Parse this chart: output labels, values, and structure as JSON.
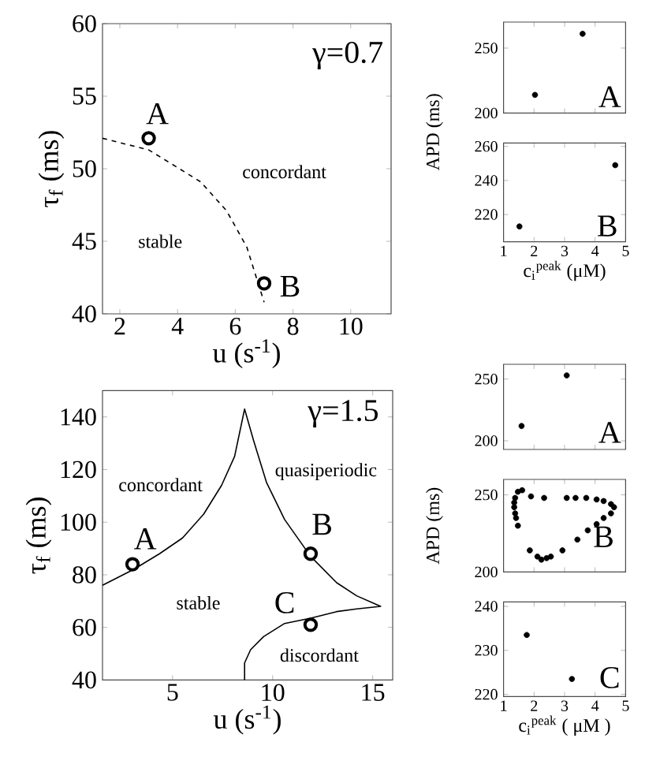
{
  "chart_data": [
    {
      "type": "line",
      "xlabel": "u  (s$^{-1}$)",
      "ylabel": "τ$_{f}$ (ms)",
      "xlim": [
        1.4,
        11.4
      ],
      "ylim": [
        40,
        60
      ],
      "xticks": [
        2,
        4,
        6,
        8,
        10
      ],
      "yticks": [
        40,
        45,
        50,
        55,
        60
      ],
      "series": [
        {
          "type": "line",
          "line_style": "dashed",
          "marker": "none",
          "color": "#000000",
          "x": [
            1.4,
            3.0,
            4.8,
            5.7,
            6.4,
            7.0
          ],
          "values": [
            52.1,
            51.3,
            49.1,
            47.1,
            44.6,
            40.8
          ]
        },
        {
          "type": "scatter",
          "marker": "circle",
          "color": "#000000",
          "x": [
            3.0,
            7.0
          ],
          "values": [
            52.1,
            42.1
          ]
        }
      ],
      "annotations": [
        "γ=0.7",
        "concordant",
        "stable",
        "A",
        "B"
      ]
    },
    {
      "type": "line",
      "xlabel": "u  (s$^{-1}$)",
      "ylabel": "τ$_{f}$ (ms)",
      "xlim": [
        1.5,
        16
      ],
      "ylim": [
        40,
        150
      ],
      "xticks": [
        5,
        10,
        15
      ],
      "yticks": [
        40,
        60,
        80,
        100,
        120,
        140
      ],
      "series": [
        {
          "type": "line",
          "line_style": "solid",
          "marker": "none",
          "color": "#000000",
          "x": [
            1.5,
            3.05,
            4.35,
            5.5,
            6.55,
            7.45,
            8.1,
            8.6,
            9.05,
            9.7,
            10.6,
            11.9,
            13.2,
            14.2,
            15.4,
            14.2,
            13.2,
            11.9,
            10.6,
            9.55,
            8.9,
            8.6,
            8.6
          ],
          "values": [
            76,
            82,
            88,
            94,
            103,
            114,
            125,
            143,
            131,
            115,
            101,
            87,
            77,
            72,
            68,
            67,
            66,
            63.5,
            61.5,
            56.5,
            51.5,
            46.5,
            40
          ]
        },
        {
          "type": "scatter",
          "marker": "circle",
          "color": "#000000",
          "x": [
            3.0,
            11.9,
            11.9
          ],
          "values": [
            84,
            88,
            61
          ]
        }
      ],
      "annotations": [
        "γ=1.5",
        "concordant",
        "quasiperiodic",
        "stable",
        "discordant",
        "A",
        "B",
        "C"
      ]
    },
    {
      "type": "scatter",
      "ylabel": "APD (ms)",
      "xlim": [
        1,
        5
      ],
      "ylim": [
        200,
        270
      ],
      "xticks": [
        1,
        2,
        3,
        4,
        5
      ],
      "yticks": [
        200,
        250
      ],
      "tick_labels": "y",
      "series": [
        {
          "type": "scatter",
          "marker": "circle",
          "color": "#000000",
          "x": [
            2.03,
            3.59
          ],
          "values": [
            214,
            261
          ]
        }
      ],
      "annotations": [
        "A"
      ]
    },
    {
      "type": "scatter",
      "xlabel": "c$_{i}$$^{peak}$ (μM)",
      "xlim": [
        1,
        5
      ],
      "ylim": [
        204,
        262
      ],
      "xticks": [
        1,
        2,
        3,
        4,
        5
      ],
      "yticks": [
        220,
        240,
        260
      ],
      "series": [
        {
          "type": "scatter",
          "marker": "circle",
          "color": "#000000",
          "x": [
            1.52,
            4.66
          ],
          "values": [
            213,
            249
          ]
        }
      ],
      "annotations": [
        "B"
      ]
    },
    {
      "type": "scatter",
      "xlim": [
        1,
        5
      ],
      "ylim": [
        193,
        262
      ],
      "xticks": [
        1,
        2,
        3,
        4,
        5
      ],
      "yticks": [
        200,
        250
      ],
      "tick_labels": "y",
      "series": [
        {
          "type": "scatter",
          "marker": "circle",
          "color": "#000000",
          "x": [
            1.59,
            3.07
          ],
          "values": [
            212,
            253
          ]
        }
      ],
      "annotations": [
        "A"
      ]
    },
    {
      "type": "scatter",
      "ylabel": "APD (ms)",
      "xlim": [
        1,
        5
      ],
      "ylim": [
        200,
        260
      ],
      "xticks": [
        1,
        2,
        3,
        4,
        5
      ],
      "yticks": [
        200,
        250
      ],
      "tick_labels": "y",
      "series": [
        {
          "type": "scatter",
          "marker": "circle",
          "color": "#000000",
          "x": [
            1.61,
            1.47,
            1.38,
            1.35,
            1.35,
            1.38,
            1.41,
            1.47,
            1.86,
            2.11,
            2.24,
            2.41,
            2.55,
            2.93,
            3.42,
            3.76,
            4.05,
            4.28,
            4.52,
            4.62,
            4.52,
            4.28,
            4.05,
            3.71,
            3.36,
            3.07,
            2.33,
            1.9
          ],
          "values": [
            253,
            252,
            248,
            245,
            242,
            238,
            235,
            230,
            214,
            210,
            208,
            209,
            210,
            214,
            221,
            227,
            231,
            235,
            238,
            242,
            244,
            246,
            247,
            248,
            248,
            248,
            248,
            249
          ]
        }
      ],
      "annotations": [
        "B"
      ]
    },
    {
      "type": "scatter",
      "xlabel": "c$_{i}$$^{peak}$ ( μM )",
      "xlim": [
        1,
        5
      ],
      "ylim": [
        219.5,
        241
      ],
      "xticks": [
        1,
        2,
        3,
        4,
        5
      ],
      "yticks": [
        220,
        230,
        240
      ],
      "series": [
        {
          "type": "scatter",
          "marker": "circle",
          "color": "#000000",
          "x": [
            1.76,
            3.24
          ],
          "values": [
            233.5,
            223.5
          ]
        }
      ],
      "annotations": [
        "C"
      ]
    }
  ]
}
